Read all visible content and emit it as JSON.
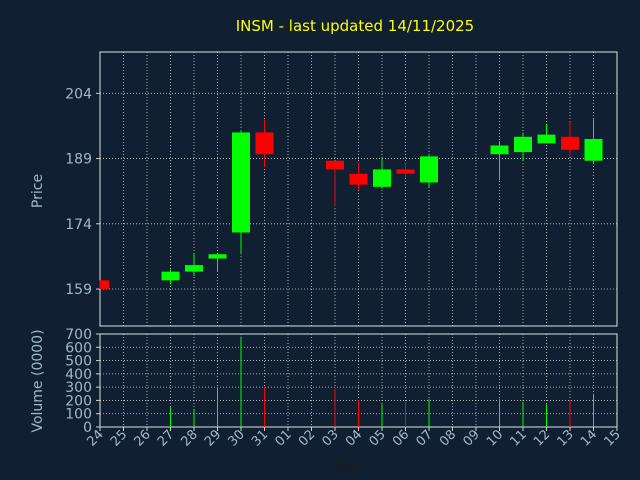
{
  "chart_data": {
    "type": "candlestick",
    "title": "INSM - last updated 14/11/2025",
    "xlabel": "Day",
    "ylabel_price": "Price",
    "ylabel_volume": "Volume (0000)",
    "x_ticks": [
      "24",
      "25",
      "26",
      "27",
      "28",
      "29",
      "30",
      "31",
      "01",
      "02",
      "03",
      "04",
      "05",
      "06",
      "07",
      "08",
      "09",
      "10",
      "11",
      "12",
      "13",
      "14",
      "15"
    ],
    "price_yticks": [
      159,
      174,
      189,
      204
    ],
    "volume_yticks": [
      0,
      100,
      200,
      300,
      400,
      500,
      600,
      700
    ],
    "price_ylim": [
      150.5,
      213.5
    ],
    "volume_ylim": [
      0,
      700
    ],
    "grid": true,
    "colors": {
      "background": "#111f33",
      "text": "#a0b8cc",
      "title": "#ffff00",
      "up": "#00ff00",
      "down": "#ff0000",
      "grid": "#d0d0d0"
    },
    "candles": [
      {
        "day": "24",
        "open": 161.0,
        "high": 161.0,
        "low": 159.0,
        "close": 159.0,
        "volume": 0
      },
      {
        "day": "27",
        "open": 161.0,
        "high": 163.5,
        "low": 160.0,
        "close": 163.0,
        "volume": 150
      },
      {
        "day": "28",
        "open": 163.0,
        "high": 167.0,
        "low": 162.0,
        "close": 164.5,
        "volume": 130
      },
      {
        "day": "29",
        "open": 166.0,
        "high": 167.0,
        "low": 163.0,
        "close": 167.0,
        "volume": 290
      },
      {
        "day": "30",
        "open": 172.0,
        "high": 195.5,
        "low": 167.0,
        "close": 195.0,
        "volume": 680
      },
      {
        "day": "31",
        "open": 195.0,
        "high": 198.0,
        "low": 187.0,
        "close": 190.0,
        "volume": 300
      },
      {
        "day": "03",
        "open": 188.5,
        "high": 188.5,
        "low": 178.0,
        "close": 186.5,
        "volume": 300
      },
      {
        "day": "04",
        "open": 185.5,
        "high": 188.0,
        "low": 182.0,
        "close": 183.0,
        "volume": 200
      },
      {
        "day": "05",
        "open": 182.5,
        "high": 189.0,
        "low": 182.0,
        "close": 186.5,
        "volume": 170
      },
      {
        "day": "06",
        "open": 186.5,
        "high": 188.0,
        "low": 184.5,
        "close": 185.5,
        "volume": 190
      },
      {
        "day": "07",
        "open": 183.5,
        "high": 190.0,
        "low": 182.5,
        "close": 189.5,
        "volume": 210
      },
      {
        "day": "10",
        "open": 190.0,
        "high": 193.0,
        "low": 184.0,
        "close": 192.0,
        "volume": 210
      },
      {
        "day": "11",
        "open": 190.5,
        "high": 195.0,
        "low": 188.5,
        "close": 194.0,
        "volume": 190
      },
      {
        "day": "12",
        "open": 192.5,
        "high": 197.0,
        "low": 192.5,
        "close": 194.5,
        "volume": 170
      },
      {
        "day": "13",
        "open": 194.0,
        "high": 197.5,
        "low": 189.5,
        "close": 191.0,
        "volume": 200
      },
      {
        "day": "14",
        "open": 188.5,
        "high": 198.0,
        "low": 188.0,
        "close": 193.5,
        "volume": 250
      }
    ]
  }
}
